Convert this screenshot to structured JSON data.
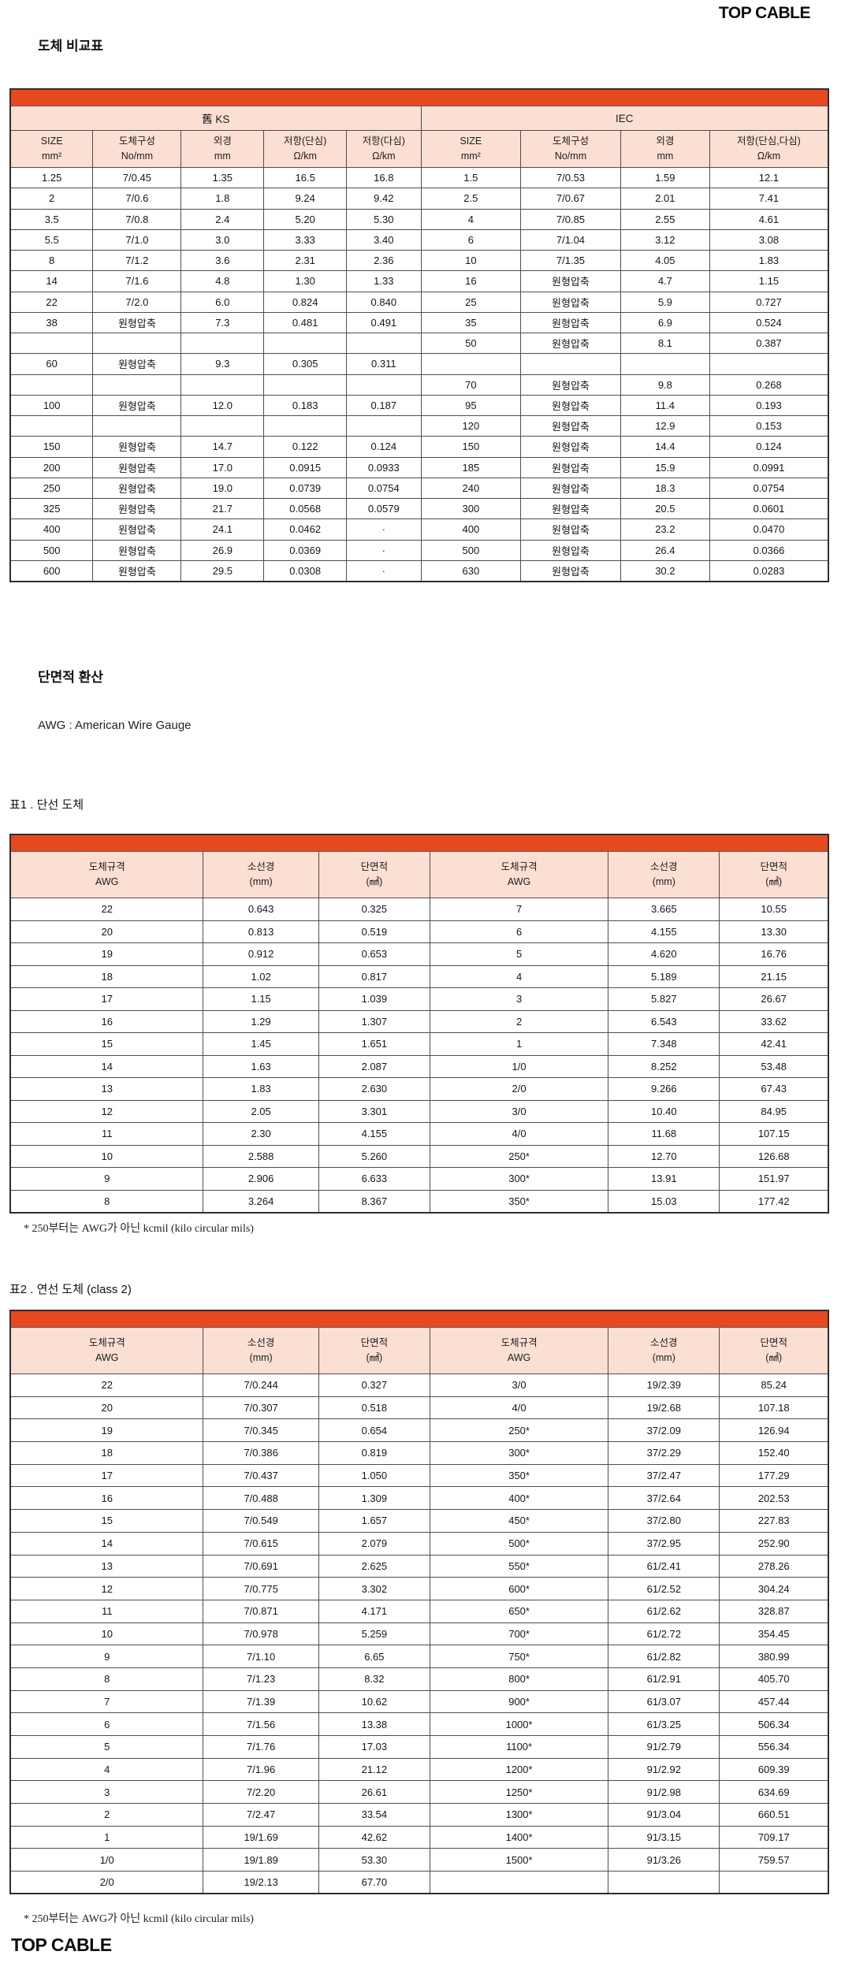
{
  "brand": {
    "top_logo": "TOP CABLE",
    "bottom_logo": "TOP CABLE"
  },
  "colors": {
    "accent_red": "#E8481E",
    "header_bg": "#FBDFD3",
    "border": "#4d4d4d"
  },
  "comparison": {
    "title": "도체 비교표",
    "groups": [
      "舊 KS",
      "IEC"
    ],
    "headers": [
      {
        "label": "SIZE",
        "unit": "mm²"
      },
      {
        "label": "도체구성",
        "unit": "No/mm"
      },
      {
        "label": "외경",
        "unit": "mm"
      },
      {
        "label": "저항(단심)",
        "unit": "Ω/km"
      },
      {
        "label": "저항(다심)",
        "unit": "Ω/km"
      },
      {
        "label": "SIZE",
        "unit": "mm²"
      },
      {
        "label": "도체구성",
        "unit": "No/mm"
      },
      {
        "label": "외경",
        "unit": "mm"
      },
      {
        "label": "저항(단심,다심)",
        "unit": "Ω/km"
      }
    ],
    "rows": [
      [
        "1.25",
        "7/0.45",
        "1.35",
        "16.5",
        "16.8",
        "1.5",
        "7/0.53",
        "1.59",
        "12.1"
      ],
      [
        "2",
        "7/0.6",
        "1.8",
        "9.24",
        "9.42",
        "2.5",
        "7/0.67",
        "2.01",
        "7.41"
      ],
      [
        "3.5",
        "7/0.8",
        "2.4",
        "5.20",
        "5.30",
        "4",
        "7/0.85",
        "2.55",
        "4.61"
      ],
      [
        "5.5",
        "7/1.0",
        "3.0",
        "3.33",
        "3.40",
        "6",
        "7/1.04",
        "3.12",
        "3.08"
      ],
      [
        "8",
        "7/1.2",
        "3.6",
        "2.31",
        "2.36",
        "10",
        "7/1.35",
        "4.05",
        "1.83"
      ],
      [
        "14",
        "7/1.6",
        "4.8",
        "1.30",
        "1.33",
        "16",
        "원형압축",
        "4.7",
        "1.15"
      ],
      [
        "22",
        "7/2.0",
        "6.0",
        "0.824",
        "0.840",
        "25",
        "원형압축",
        "5.9",
        "0.727"
      ],
      [
        "38",
        "원형압축",
        "7.3",
        "0.481",
        "0.491",
        "35",
        "원형압축",
        "6.9",
        "0.524"
      ],
      [
        "",
        "",
        "",
        "",
        "",
        "50",
        "원형압축",
        "8.1",
        "0.387"
      ],
      [
        "60",
        "원형압축",
        "9.3",
        "0.305",
        "0.311",
        "",
        "",
        "",
        ""
      ],
      [
        "",
        "",
        "",
        "",
        "",
        "70",
        "원형압축",
        "9.8",
        "0.268"
      ],
      [
        "100",
        "원형압축",
        "12.0",
        "0.183",
        "0.187",
        "95",
        "원형압축",
        "11.4",
        "0.193"
      ],
      [
        "",
        "",
        "",
        "",
        "",
        "120",
        "원형압축",
        "12.9",
        "0.153"
      ],
      [
        "150",
        "원형압축",
        "14.7",
        "0.122",
        "0.124",
        "150",
        "원형압축",
        "14.4",
        "0.124"
      ],
      [
        "200",
        "원형압축",
        "17.0",
        "0.0915",
        "0.0933",
        "185",
        "원형압축",
        "15.9",
        "0.0991"
      ],
      [
        "250",
        "원형압축",
        "19.0",
        "0.0739",
        "0.0754",
        "240",
        "원형압축",
        "18.3",
        "0.0754"
      ],
      [
        "325",
        "원형압축",
        "21.7",
        "0.0568",
        "0.0579",
        "300",
        "원형압축",
        "20.5",
        "0.0601"
      ],
      [
        "400",
        "원형압축",
        "24.1",
        "0.0462",
        "·",
        "400",
        "원형압축",
        "23.2",
        "0.0470"
      ],
      [
        "500",
        "원형압축",
        "26.9",
        "0.0369",
        "·",
        "500",
        "원형압축",
        "26.4",
        "0.0366"
      ],
      [
        "600",
        "원형압축",
        "29.5",
        "0.0308",
        "·",
        "630",
        "원형압축",
        "30.2",
        "0.0283"
      ]
    ]
  },
  "conversion": {
    "title": "단면적 환산",
    "subtitle": "AWG : American Wire Gauge"
  },
  "table1": {
    "caption": "표1 . 단선 도체",
    "headers": [
      {
        "label": "도체규격",
        "unit": "AWG"
      },
      {
        "label": "소선경",
        "unit": "(mm)"
      },
      {
        "label": "단면적",
        "unit": "(㎟)"
      },
      {
        "label": "도체규격",
        "unit": "AWG"
      },
      {
        "label": "소선경",
        "unit": "(mm)"
      },
      {
        "label": "단면적",
        "unit": "(㎟)"
      }
    ],
    "rows": [
      [
        "22",
        "0.643",
        "0.325",
        "7",
        "3.665",
        "10.55"
      ],
      [
        "20",
        "0.813",
        "0.519",
        "6",
        "4.155",
        "13.30"
      ],
      [
        "19",
        "0.912",
        "0.653",
        "5",
        "4.620",
        "16.76"
      ],
      [
        "18",
        "1.02",
        "0.817",
        "4",
        "5.189",
        "21.15"
      ],
      [
        "17",
        "1.15",
        "1.039",
        "3",
        "5.827",
        "26.67"
      ],
      [
        "16",
        "1.29",
        "1.307",
        "2",
        "6.543",
        "33.62"
      ],
      [
        "15",
        "1.45",
        "1.651",
        "1",
        "7.348",
        "42.41"
      ],
      [
        "14",
        "1.63",
        "2.087",
        "1/0",
        "8.252",
        "53.48"
      ],
      [
        "13",
        "1.83",
        "2.630",
        "2/0",
        "9.266",
        "67.43"
      ],
      [
        "12",
        "2.05",
        "3.301",
        "3/0",
        "10.40",
        "84.95"
      ],
      [
        "11",
        "2.30",
        "4.155",
        "4/0",
        "11.68",
        "107.15"
      ],
      [
        "10",
        "2.588",
        "5.260",
        "250*",
        "12.70",
        "126.68"
      ],
      [
        "9",
        "2.906",
        "6.633",
        "300*",
        "13.91",
        "151.97"
      ],
      [
        "8",
        "3.264",
        "8.367",
        "350*",
        "15.03",
        "177.42"
      ]
    ],
    "footnote": "* 250부터는 AWG가 아닌 kcmil (kilo circular mils)"
  },
  "table2": {
    "caption": "표2 . 연선 도체 (class 2)",
    "headers": [
      {
        "label": "도체규격",
        "unit": "AWG"
      },
      {
        "label": "소선경",
        "unit": "(mm)"
      },
      {
        "label": "단면적",
        "unit": "(㎟)"
      },
      {
        "label": "도체규격",
        "unit": "AWG"
      },
      {
        "label": "소선경",
        "unit": "(mm)"
      },
      {
        "label": "단면적",
        "unit": "(㎟)"
      }
    ],
    "rows": [
      [
        "22",
        "7/0.244",
        "0.327",
        "3/0",
        "19/2.39",
        "85.24"
      ],
      [
        "20",
        "7/0.307",
        "0.518",
        "4/0",
        "19/2.68",
        "107.18"
      ],
      [
        "19",
        "7/0.345",
        "0.654",
        "250*",
        "37/2.09",
        "126.94"
      ],
      [
        "18",
        "7/0.386",
        "0.819",
        "300*",
        "37/2.29",
        "152.40"
      ],
      [
        "17",
        "7/0.437",
        "1.050",
        "350*",
        "37/2.47",
        "177.29"
      ],
      [
        "16",
        "7/0.488",
        "1.309",
        "400*",
        "37/2.64",
        "202.53"
      ],
      [
        "15",
        "7/0.549",
        "1.657",
        "450*",
        "37/2.80",
        "227.83"
      ],
      [
        "14",
        "7/0.615",
        "2.079",
        "500*",
        "37/2.95",
        "252.90"
      ],
      [
        "13",
        "7/0.691",
        "2.625",
        "550*",
        "61/2.41",
        "278.26"
      ],
      [
        "12",
        "7/0.775",
        "3.302",
        "600*",
        "61/2.52",
        "304.24"
      ],
      [
        "11",
        "7/0.871",
        "4.171",
        "650*",
        "61/2.62",
        "328.87"
      ],
      [
        "10",
        "7/0.978",
        "5.259",
        "700*",
        "61/2.72",
        "354.45"
      ],
      [
        "9",
        "7/1.10",
        "6.65",
        "750*",
        "61/2.82",
        "380.99"
      ],
      [
        "8",
        "7/1.23",
        "8.32",
        "800*",
        "61/2.91",
        "405.70"
      ],
      [
        "7",
        "7/1.39",
        "10.62",
        "900*",
        "61/3.07",
        "457.44"
      ],
      [
        "6",
        "7/1.56",
        "13.38",
        "1000*",
        "61/3.25",
        "506.34"
      ],
      [
        "5",
        "7/1.76",
        "17.03",
        "1100*",
        "91/2.79",
        "556.34"
      ],
      [
        "4",
        "7/1.96",
        "21.12",
        "1200*",
        "91/2.92",
        "609.39"
      ],
      [
        "3",
        "7/2.20",
        "26.61",
        "1250*",
        "91/2.98",
        "634.69"
      ],
      [
        "2",
        "7/2.47",
        "33.54",
        "1300*",
        "91/3.04",
        "660.51"
      ],
      [
        "1",
        "19/1.69",
        "42.62",
        "1400*",
        "91/3.15",
        "709.17"
      ],
      [
        "1/0",
        "19/1.89",
        "53.30",
        "1500*",
        "91/3.26",
        "759.57"
      ],
      [
        "2/0",
        "19/2.13",
        "67.70",
        "",
        "",
        ""
      ]
    ],
    "footnote": "* 250부터는 AWG가 아닌 kcmil (kilo circular mils)"
  }
}
